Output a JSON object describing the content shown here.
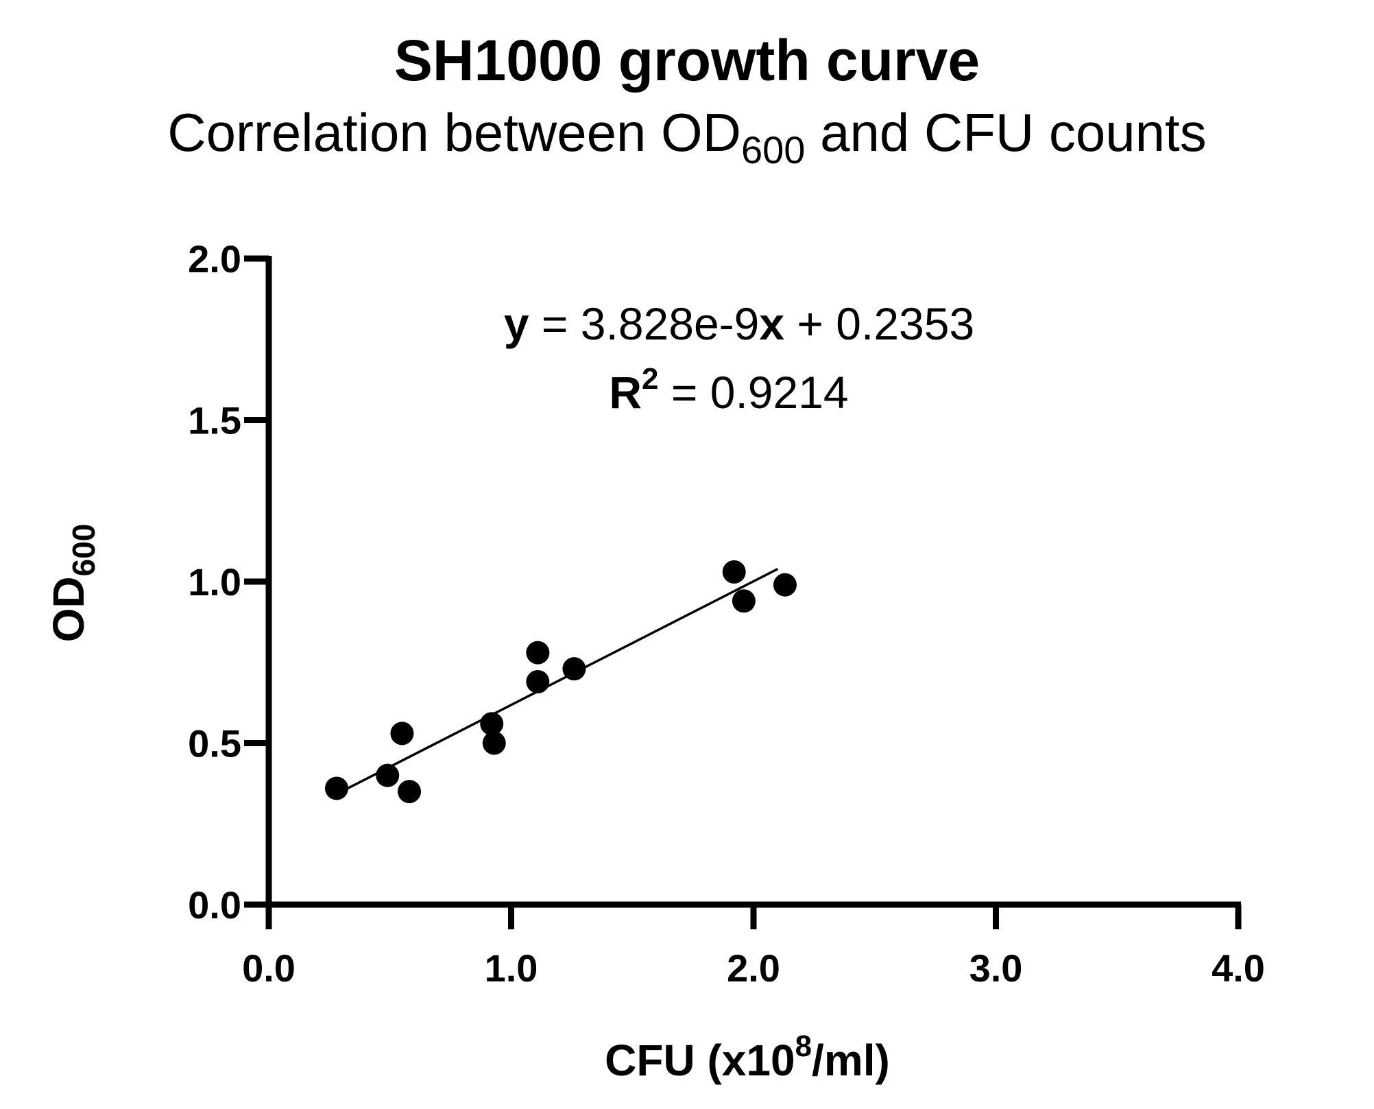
{
  "chart_data": {
    "type": "scatter",
    "title": "SH1000 growth curve",
    "subtitle": {
      "prefix": "Correlation between OD",
      "sub": "600",
      "suffix": " and CFU counts"
    },
    "xlabel": {
      "prefix": "CFU (x10",
      "sup": "8",
      "suffix": "/ml)"
    },
    "ylabel": {
      "prefix": "OD",
      "sub": "600"
    },
    "xlim": [
      0,
      4
    ],
    "ylim": [
      0,
      2
    ],
    "x_ticks": [
      "0.0",
      "1.0",
      "2.0",
      "3.0",
      "4.0"
    ],
    "y_ticks": [
      "0.0",
      "0.5",
      "1.0",
      "1.5",
      "2.0"
    ],
    "series": [
      {
        "name": "SH1000",
        "x": [
          0.28,
          0.49,
          0.55,
          0.58,
          0.92,
          0.93,
          1.11,
          1.11,
          1.26,
          1.92,
          1.96,
          2.13
        ],
        "y": [
          0.36,
          0.4,
          0.53,
          0.35,
          0.56,
          0.5,
          0.78,
          0.69,
          0.73,
          1.03,
          0.94,
          0.99
        ]
      }
    ],
    "fit": {
      "slope": 0.3828,
      "intercept": 0.2353,
      "x_range": [
        0.28,
        2.1
      ]
    },
    "annotation": {
      "eq_y": "y",
      "eq_mid": " = 3.828e-9",
      "eq_x": "x",
      "eq_end": " + 0.2353",
      "r_label": "R",
      "r_sup": "2",
      "r_value": " = 0.9214"
    }
  }
}
